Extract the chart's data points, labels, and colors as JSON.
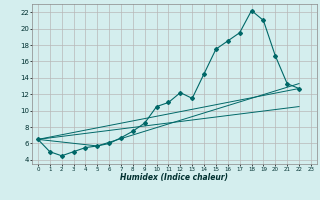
{
  "xlabel": "Humidex (Indice chaleur)",
  "bg_color": "#d4eeee",
  "grid_color": "#b8b8b8",
  "line_color": "#006868",
  "xlim": [
    -0.5,
    23.5
  ],
  "ylim": [
    3.5,
    23.0
  ],
  "xticks": [
    0,
    1,
    2,
    3,
    4,
    5,
    6,
    7,
    8,
    9,
    10,
    11,
    12,
    13,
    14,
    15,
    16,
    17,
    18,
    19,
    20,
    21,
    22,
    23
  ],
  "yticks": [
    4,
    6,
    8,
    10,
    12,
    14,
    16,
    18,
    20,
    22
  ],
  "main_x": [
    0,
    1,
    2,
    3,
    4,
    5,
    6,
    7,
    8,
    9,
    10,
    11,
    12,
    13,
    14,
    15,
    16,
    17,
    18,
    19,
    20,
    21,
    22
  ],
  "main_y": [
    6.5,
    5.0,
    4.5,
    5.0,
    5.5,
    5.7,
    6.0,
    6.7,
    7.5,
    8.5,
    10.5,
    11.0,
    12.2,
    11.5,
    14.5,
    17.5,
    18.5,
    19.5,
    22.2,
    21.0,
    16.7,
    13.3,
    12.7
  ],
  "trend1_x": [
    0,
    22
  ],
  "trend1_y": [
    6.5,
    10.5
  ],
  "trend2_x": [
    0,
    22
  ],
  "trend2_y": [
    6.5,
    12.7
  ],
  "trend3_x": [
    0,
    5,
    22
  ],
  "trend3_y": [
    6.5,
    5.7,
    13.3
  ]
}
